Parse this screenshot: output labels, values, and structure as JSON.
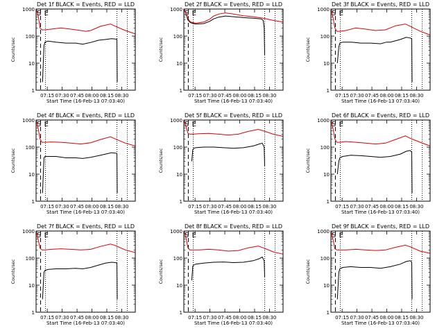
{
  "figure": {
    "xlabel": "Start Time (16-Feb-13 07:03:40)",
    "ylabel": "Counts/sec",
    "x_tick_labels": [
      "07:15",
      "07:30",
      "07:45",
      "08:00",
      "08:15",
      "08:30"
    ],
    "y_tick_labels": [
      "1",
      "10",
      "100",
      "1000"
    ],
    "marker_start": "S",
    "marker_end": "E"
  },
  "chart_data": [
    {
      "type": "line",
      "title": "Det 1f BLACK = Events, RED = LLD",
      "x_unit": "minutes since 07:03:40",
      "xlim": [
        0,
        100
      ],
      "ylim": [
        1,
        1000
      ],
      "y_scale": "log",
      "x_ticks": [
        11.3,
        26.3,
        41.3,
        56.3,
        71.3,
        86.3
      ],
      "dashed_marker_x": 4.5,
      "dotted_marker_x": [
        9.5,
        81.5,
        92.0
      ],
      "series": [
        {
          "color": "#000000",
          "x": [
            6.5,
            8,
            9,
            12,
            20,
            30,
            40,
            47,
            55,
            63,
            70,
            76,
            80,
            81.5,
            81.8
          ],
          "values": [
            2,
            45,
            60,
            65,
            60,
            55,
            55,
            50,
            58,
            70,
            75,
            80,
            78,
            75,
            2
          ]
        },
        {
          "color": "#dd0000",
          "x": [
            0,
            2,
            4,
            6,
            9,
            15,
            25,
            35,
            45,
            50,
            55,
            65,
            75,
            80,
            90,
            100
          ],
          "values": [
            1000,
            600,
            200,
            170,
            170,
            180,
            200,
            180,
            160,
            150,
            160,
            230,
            280,
            230,
            160,
            120
          ]
        }
      ]
    },
    {
      "type": "line",
      "title": "Det 2f BLACK = Events, RED = LLD",
      "x_unit": "minutes since 07:03:40",
      "xlim": [
        0,
        100
      ],
      "ylim": [
        1,
        1000
      ],
      "y_scale": "log",
      "x_ticks": [
        11.3,
        26.3,
        41.3,
        56.3,
        71.3,
        86.3
      ],
      "dashed_marker_x": 4.5,
      "dotted_marker_x": [
        9.5,
        81.5,
        92.0
      ],
      "series": [
        {
          "color": "#000000",
          "x": [
            0,
            2,
            4,
            6,
            8,
            12,
            20,
            26,
            30,
            35,
            42,
            50,
            60,
            70,
            78,
            80,
            81,
            81.5
          ],
          "values": [
            1000,
            700,
            400,
            330,
            300,
            280,
            290,
            350,
            430,
            500,
            550,
            520,
            480,
            460,
            430,
            380,
            200,
            20
          ]
        },
        {
          "color": "#dd0000",
          "x": [
            0,
            2,
            4,
            6,
            8,
            12,
            20,
            26,
            30,
            35,
            42,
            50,
            60,
            70,
            80,
            90,
            100
          ],
          "values": [
            1000,
            700,
            450,
            350,
            320,
            300,
            330,
            420,
            550,
            650,
            720,
            650,
            560,
            520,
            460,
            380,
            330
          ]
        }
      ]
    },
    {
      "type": "line",
      "title": "Det 3f BLACK = Events, RED = LLD",
      "x_unit": "minutes since 07:03:40",
      "xlim": [
        0,
        100
      ],
      "ylim": [
        1,
        1000
      ],
      "y_scale": "log",
      "x_ticks": [
        11.3,
        26.3,
        41.3,
        56.3,
        71.3,
        86.3
      ],
      "dashed_marker_x": 4.5,
      "dotted_marker_x": [
        9.5,
        81.5,
        92.0
      ],
      "series": [
        {
          "color": "#000000",
          "x": [
            6.5,
            8,
            9,
            12,
            20,
            30,
            40,
            50,
            56,
            60,
            70,
            76,
            80,
            81.5,
            81.8
          ],
          "values": [
            10,
            40,
            55,
            60,
            60,
            55,
            55,
            52,
            60,
            60,
            75,
            90,
            85,
            80,
            2
          ]
        },
        {
          "color": "#dd0000",
          "x": [
            0,
            2,
            4,
            6,
            9,
            15,
            25,
            35,
            45,
            55,
            65,
            75,
            80,
            90,
            100
          ],
          "values": [
            1000,
            500,
            200,
            150,
            150,
            160,
            200,
            180,
            160,
            170,
            240,
            280,
            230,
            150,
            110
          ]
        }
      ]
    },
    {
      "type": "line",
      "title": "Det 4f BLACK = Events, RED = LLD",
      "x_unit": "minutes since 07:03:40",
      "xlim": [
        0,
        100
      ],
      "ylim": [
        1,
        1000
      ],
      "y_scale": "log",
      "x_ticks": [
        11.3,
        26.3,
        41.3,
        56.3,
        71.3,
        86.3
      ],
      "dashed_marker_x": 4.5,
      "dotted_marker_x": [
        9.5,
        81.5,
        92.0
      ],
      "series": [
        {
          "color": "#000000",
          "x": [
            6.5,
            8,
            9,
            12,
            20,
            30,
            40,
            47,
            55,
            63,
            70,
            76,
            80,
            81.5,
            81.8
          ],
          "values": [
            2,
            40,
            45,
            45,
            45,
            40,
            40,
            38,
            42,
            48,
            55,
            62,
            60,
            58,
            2
          ]
        },
        {
          "color": "#dd0000",
          "x": [
            0,
            2,
            4,
            6,
            9,
            15,
            25,
            35,
            45,
            55,
            65,
            75,
            80,
            90,
            100
          ],
          "values": [
            1000,
            500,
            200,
            150,
            150,
            155,
            150,
            140,
            130,
            145,
            190,
            240,
            200,
            140,
            110
          ]
        }
      ]
    },
    {
      "type": "line",
      "title": "Det 5f BLACK = Events, RED = LLD",
      "x_unit": "minutes since 07:03:40",
      "xlim": [
        0,
        100
      ],
      "ylim": [
        1,
        1000
      ],
      "y_scale": "log",
      "x_ticks": [
        11.3,
        26.3,
        41.3,
        56.3,
        71.3,
        86.3
      ],
      "dashed_marker_x": 4.5,
      "dotted_marker_x": [
        9.5,
        81.5,
        92.0
      ],
      "series": [
        {
          "color": "#000000",
          "x": [
            8,
            9,
            10,
            12,
            20,
            30,
            40,
            50,
            60,
            70,
            76,
            79,
            81,
            81.5
          ],
          "values": [
            30,
            80,
            90,
            95,
            100,
            100,
            95,
            90,
            95,
            110,
            130,
            140,
            100,
            20
          ]
        },
        {
          "color": "#dd0000",
          "x": [
            0,
            2,
            4,
            6,
            9,
            15,
            25,
            35,
            45,
            55,
            65,
            75,
            80,
            90,
            100
          ],
          "values": [
            1000,
            600,
            330,
            300,
            300,
            310,
            320,
            300,
            280,
            300,
            380,
            450,
            400,
            300,
            250
          ]
        }
      ]
    },
    {
      "type": "line",
      "title": "Det 6f BLACK = Events, RED = LLD",
      "x_unit": "minutes since 07:03:40",
      "xlim": [
        0,
        100
      ],
      "ylim": [
        1,
        1000
      ],
      "y_scale": "log",
      "x_ticks": [
        11.3,
        26.3,
        41.3,
        56.3,
        71.3,
        86.3
      ],
      "dashed_marker_x": 4.5,
      "dotted_marker_x": [
        9.5,
        81.5,
        92.0
      ],
      "series": [
        {
          "color": "#000000",
          "x": [
            6.5,
            8,
            9,
            12,
            20,
            30,
            40,
            50,
            60,
            70,
            76,
            80,
            81.5,
            81.8
          ],
          "values": [
            10,
            30,
            40,
            45,
            50,
            48,
            45,
            42,
            45,
            55,
            70,
            75,
            65,
            2
          ]
        },
        {
          "color": "#dd0000",
          "x": [
            0,
            2,
            4,
            6,
            9,
            15,
            25,
            35,
            45,
            55,
            65,
            75,
            80,
            90,
            100
          ],
          "values": [
            1000,
            500,
            200,
            150,
            150,
            160,
            150,
            140,
            130,
            140,
            190,
            260,
            210,
            150,
            110
          ]
        }
      ]
    },
    {
      "type": "line",
      "title": "Det 7f BLACK = Events, RED = LLD",
      "x_unit": "minutes since 07:03:40",
      "xlim": [
        0,
        100
      ],
      "ylim": [
        1,
        1000
      ],
      "y_scale": "log",
      "x_ticks": [
        11.3,
        26.3,
        41.3,
        56.3,
        71.3,
        86.3
      ],
      "dashed_marker_x": 4.5,
      "dotted_marker_x": [
        9.5,
        81.5,
        92.0
      ],
      "series": [
        {
          "color": "#000000",
          "x": [
            6.5,
            8,
            9,
            12,
            20,
            30,
            40,
            47,
            55,
            63,
            70,
            76,
            80,
            81.5,
            81.8
          ],
          "values": [
            3,
            30,
            35,
            38,
            40,
            40,
            42,
            40,
            45,
            55,
            65,
            70,
            68,
            65,
            3
          ]
        },
        {
          "color": "#dd0000",
          "x": [
            0,
            2,
            4,
            6,
            9,
            15,
            25,
            35,
            45,
            55,
            65,
            75,
            80,
            90,
            100
          ],
          "values": [
            1000,
            500,
            230,
            200,
            200,
            210,
            220,
            210,
            200,
            210,
            270,
            330,
            290,
            200,
            160
          ]
        }
      ]
    },
    {
      "type": "line",
      "title": "Det 8f BLACK = Events, RED = LLD",
      "x_unit": "minutes since 07:03:40",
      "xlim": [
        0,
        100
      ],
      "ylim": [
        1,
        1000
      ],
      "y_scale": "log",
      "x_ticks": [
        11.3,
        26.3,
        41.3,
        56.3,
        71.3,
        86.3
      ],
      "dashed_marker_x": 4.5,
      "dotted_marker_x": [
        9.5,
        81.5,
        92.0
      ],
      "series": [
        {
          "color": "#000000",
          "x": [
            8,
            9,
            10,
            12,
            20,
            30,
            40,
            50,
            60,
            70,
            76,
            79,
            81,
            81.5
          ],
          "values": [
            15,
            50,
            55,
            60,
            65,
            70,
            72,
            68,
            70,
            80,
            95,
            110,
            80,
            20
          ]
        },
        {
          "color": "#dd0000",
          "x": [
            0,
            2,
            4,
            6,
            9,
            15,
            25,
            35,
            45,
            55,
            65,
            75,
            80,
            90,
            100
          ],
          "values": [
            1000,
            600,
            250,
            200,
            200,
            200,
            210,
            200,
            180,
            190,
            240,
            280,
            240,
            170,
            140
          ]
        }
      ]
    },
    {
      "type": "line",
      "title": "Det 9f BLACK = Events, RED = LLD",
      "x_unit": "minutes since 07:03:40",
      "xlim": [
        0,
        100
      ],
      "ylim": [
        1,
        1000
      ],
      "y_scale": "log",
      "x_ticks": [
        11.3,
        26.3,
        41.3,
        56.3,
        71.3,
        86.3
      ],
      "dashed_marker_x": 4.5,
      "dotted_marker_x": [
        9.5,
        81.5,
        92.0
      ],
      "series": [
        {
          "color": "#000000",
          "x": [
            6.5,
            8,
            9,
            12,
            20,
            30,
            40,
            50,
            60,
            70,
            76,
            80,
            81.5,
            81.8
          ],
          "values": [
            3,
            30,
            40,
            45,
            48,
            45,
            45,
            42,
            48,
            60,
            75,
            80,
            70,
            3
          ]
        },
        {
          "color": "#dd0000",
          "x": [
            0,
            2,
            4,
            6,
            9,
            15,
            25,
            35,
            45,
            55,
            65,
            75,
            80,
            90,
            100
          ],
          "values": [
            1000,
            500,
            220,
            200,
            200,
            200,
            210,
            200,
            190,
            200,
            250,
            300,
            260,
            180,
            150
          ]
        }
      ]
    }
  ]
}
